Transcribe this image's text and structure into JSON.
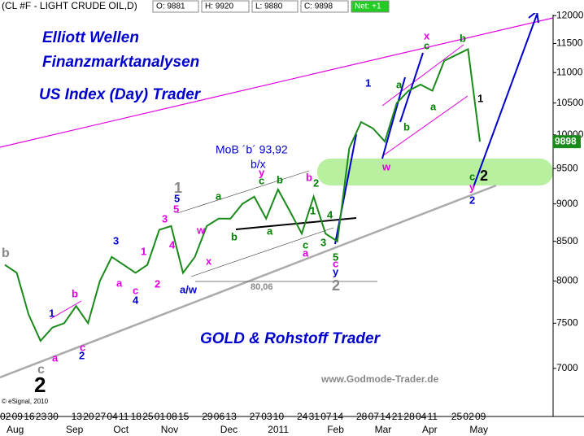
{
  "chart_data": {
    "type": "line",
    "header": {
      "symbol": "(CL #F - LIGHT CRUDE OIL,D)",
      "open": "O: 9881",
      "high": "H: 9920",
      "low": "L: 9880",
      "close": "C: 9898",
      "net": "Net: +1"
    },
    "last_price": 9898,
    "categories": [
      "02",
      "09",
      "16",
      "23",
      "30",
      null,
      "13",
      "20",
      "27",
      "04",
      "11",
      "18",
      "25",
      "01",
      "08",
      "15",
      null,
      "29",
      "06",
      "13",
      null,
      "27",
      "03",
      "10",
      null,
      "24",
      "31",
      "07",
      "14",
      null,
      "28",
      "07",
      "14",
      "21",
      "28",
      "04",
      "11",
      null,
      "25",
      "02",
      "09"
    ],
    "months": [
      "Aug",
      "Sep",
      "Oct",
      "Nov",
      "Dec",
      "2011",
      "Feb",
      "Mar",
      "Apr",
      "May"
    ],
    "series": [
      {
        "color": "#1a8a1a",
        "values": [
          8200,
          8100,
          7600,
          7300,
          7450,
          7500,
          7700,
          7500,
          8000,
          8300,
          8200,
          8100,
          8200,
          8650,
          8700,
          8100,
          8300,
          8700,
          8800,
          8800,
          9000,
          9100,
          8800,
          9200,
          8900,
          8600,
          9100,
          8600,
          8500,
          9800,
          10200,
          10100,
          9900,
          10500,
          10700,
          10800,
          10700,
          11200,
          11300,
          11400,
          9898
        ]
      }
    ],
    "ylim": [
      6520,
      12290
    ],
    "log": true,
    "yticks": [
      7000,
      7500,
      8000,
      8500,
      9000,
      9500,
      10000,
      10500,
      11000,
      11500,
      12000
    ],
    "titles": [
      "Elliott Wellen",
      "Finanzmarktanalysen",
      "US Index (Day) Trader",
      "GOLD & Rohstoff Trader"
    ],
    "notes": [
      "MoB ´b´ 93,92",
      "b/x",
      "80,06",
      "www.Godmode-Trader.de",
      "© eSignal, 2010"
    ],
    "annotations": [
      {
        "text": "b",
        "color": "#888888"
      },
      {
        "text": "c",
        "color": "#888888"
      },
      {
        "text": "2",
        "color": "#000000"
      },
      {
        "text": "1",
        "color": "#0000cc"
      },
      {
        "text": "a",
        "color": "#e000e0"
      },
      {
        "text": "b",
        "color": "#e000e0"
      },
      {
        "text": "c",
        "color": "#e000e0"
      },
      {
        "text": "2",
        "color": "#0000cc"
      },
      {
        "text": "3",
        "color": "#0000cc"
      },
      {
        "text": "a",
        "color": "#e000e0"
      },
      {
        "text": "c",
        "color": "#e000e0"
      },
      {
        "text": "4",
        "color": "#0000cc"
      },
      {
        "text": "1",
        "color": "#e000e0"
      },
      {
        "text": "2",
        "color": "#e000e0"
      },
      {
        "text": "3",
        "color": "#e000e0"
      },
      {
        "text": "4",
        "color": "#e000e0"
      },
      {
        "text": "5",
        "color": "#e000e0"
      },
      {
        "text": "5",
        "color": "#0000cc"
      },
      {
        "text": "1",
        "color": "#888888"
      },
      {
        "text": "w",
        "color": "#e000e0"
      },
      {
        "text": "x",
        "color": "#e000e0"
      },
      {
        "text": "a/w",
        "color": "#0000cc"
      },
      {
        "text": "a",
        "color": "#008000"
      },
      {
        "text": "b",
        "color": "#008000"
      },
      {
        "text": "c",
        "color": "#008000"
      },
      {
        "text": "y",
        "color": "#e000e0"
      },
      {
        "text": "b",
        "color": "#008000"
      },
      {
        "text": "a",
        "color": "#008000"
      },
      {
        "text": "b",
        "color": "#e000e0"
      },
      {
        "text": "2",
        "color": "#008000"
      },
      {
        "text": "1",
        "color": "#008000"
      },
      {
        "text": "4",
        "color": "#008000"
      },
      {
        "text": "c",
        "color": "#008000"
      },
      {
        "text": "a",
        "color": "#e000e0"
      },
      {
        "text": "3",
        "color": "#008000"
      },
      {
        "text": "5",
        "color": "#008000"
      },
      {
        "text": "c",
        "color": "#e000e0"
      },
      {
        "text": "y",
        "color": "#0000cc"
      },
      {
        "text": "2",
        "color": "#888888"
      },
      {
        "text": "1",
        "color": "#0000cc"
      },
      {
        "text": "a",
        "color": "#008000"
      },
      {
        "text": "b",
        "color": "#008000"
      },
      {
        "text": "w",
        "color": "#e000e0"
      },
      {
        "text": "x",
        "color": "#e000e0"
      },
      {
        "text": "c",
        "color": "#008000"
      },
      {
        "text": "a",
        "color": "#008000"
      },
      {
        "text": "b",
        "color": "#008000"
      },
      {
        "text": "1",
        "color": "#000000"
      },
      {
        "text": "c",
        "color": "#008000"
      },
      {
        "text": "y",
        "color": "#e000e0"
      },
      {
        "text": "2",
        "color": "#000000"
      },
      {
        "text": "2",
        "color": "#0000cc"
      }
    ]
  }
}
